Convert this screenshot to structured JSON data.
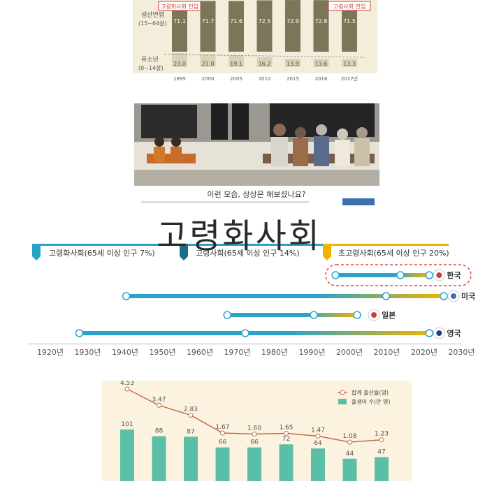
{
  "title": "고령화사회",
  "colors": {
    "olive": "#7a7658",
    "olive_light": "#d8d2b8",
    "beige": "#f3eedb",
    "red": "#d13b3b",
    "teal": "#5bbfa6",
    "teal_dark": "#3aa68d",
    "line_red": "#c86b4a",
    "timeline_blue": "#2aa3cc",
    "timeline_orange": "#f0b400"
  },
  "stack_panel": {
    "rows": [
      {
        "label": "생산연령",
        "sub": "(15~64살)"
      },
      {
        "label": "유소년",
        "sub": "(0~14살)"
      }
    ],
    "tags": [
      {
        "text": "고령화사회 진입",
        "col": 0
      },
      {
        "text": "고령사회 진입",
        "col": 6
      }
    ]
  },
  "poster": {
    "caption": "이런 모습, 상상은 해보셨나요?"
  },
  "timeline": {
    "stages": [
      {
        "label": "고령화사회(65세 이상 인구 7%)"
      },
      {
        "label": "고령사회(65세 이상 인구 14%)"
      },
      {
        "label": "초고령사회(65세 이상 인구 20%)"
      }
    ],
    "countries": [
      {
        "name": "한국"
      },
      {
        "name": "미국"
      },
      {
        "name": "일본"
      },
      {
        "name": "영국"
      }
    ],
    "axis_labels": [
      "1920년",
      "1930년",
      "1940년",
      "1950년",
      "1960년",
      "1970년",
      "1980년",
      "1990년",
      "2000년",
      "2010년",
      "2020년",
      "2030년"
    ]
  },
  "chart_data": [
    {
      "type": "bar",
      "categories": [
        "1995",
        "2000",
        "2005",
        "2010",
        "2015",
        "2016",
        "2017년"
      ],
      "series": [
        {
          "name": "생산연령",
          "values": [
            71.1,
            71.7,
            71.6,
            72.5,
            72.9,
            72.8,
            71.5
          ]
        },
        {
          "name": "유소년",
          "values": [
            23.0,
            21.0,
            19.1,
            16.2,
            13.9,
            13.6,
            13.3
          ]
        }
      ],
      "stacked": true
    },
    {
      "type": "timeline",
      "x_range": [
        1920,
        2030
      ],
      "series": [
        {
          "name": "한국",
          "values": [
            2000,
            2018,
            2026
          ]
        },
        {
          "name": "미국",
          "values": [
            1942,
            2014,
            2030
          ]
        },
        {
          "name": "일본",
          "values": [
            1970,
            1994,
            2006
          ]
        },
        {
          "name": "영국",
          "values": [
            1929,
            1975,
            2026
          ]
        }
      ]
    },
    {
      "type": "bar",
      "categories": [
        "",
        "",
        "",
        "",
        "",
        "",
        "",
        "",
        ""
      ],
      "series": [
        {
          "name": "출생아 수(만 명)",
          "values": [
            101,
            88,
            87,
            66,
            66,
            72,
            64,
            44,
            47
          ]
        },
        {
          "name": "합계 출산율(명)",
          "values": [
            4.53,
            3.47,
            2.83,
            1.67,
            1.6,
            1.65,
            1.47,
            1.08,
            1.23
          ],
          "type": "line"
        }
      ],
      "legend": "top-right"
    }
  ]
}
